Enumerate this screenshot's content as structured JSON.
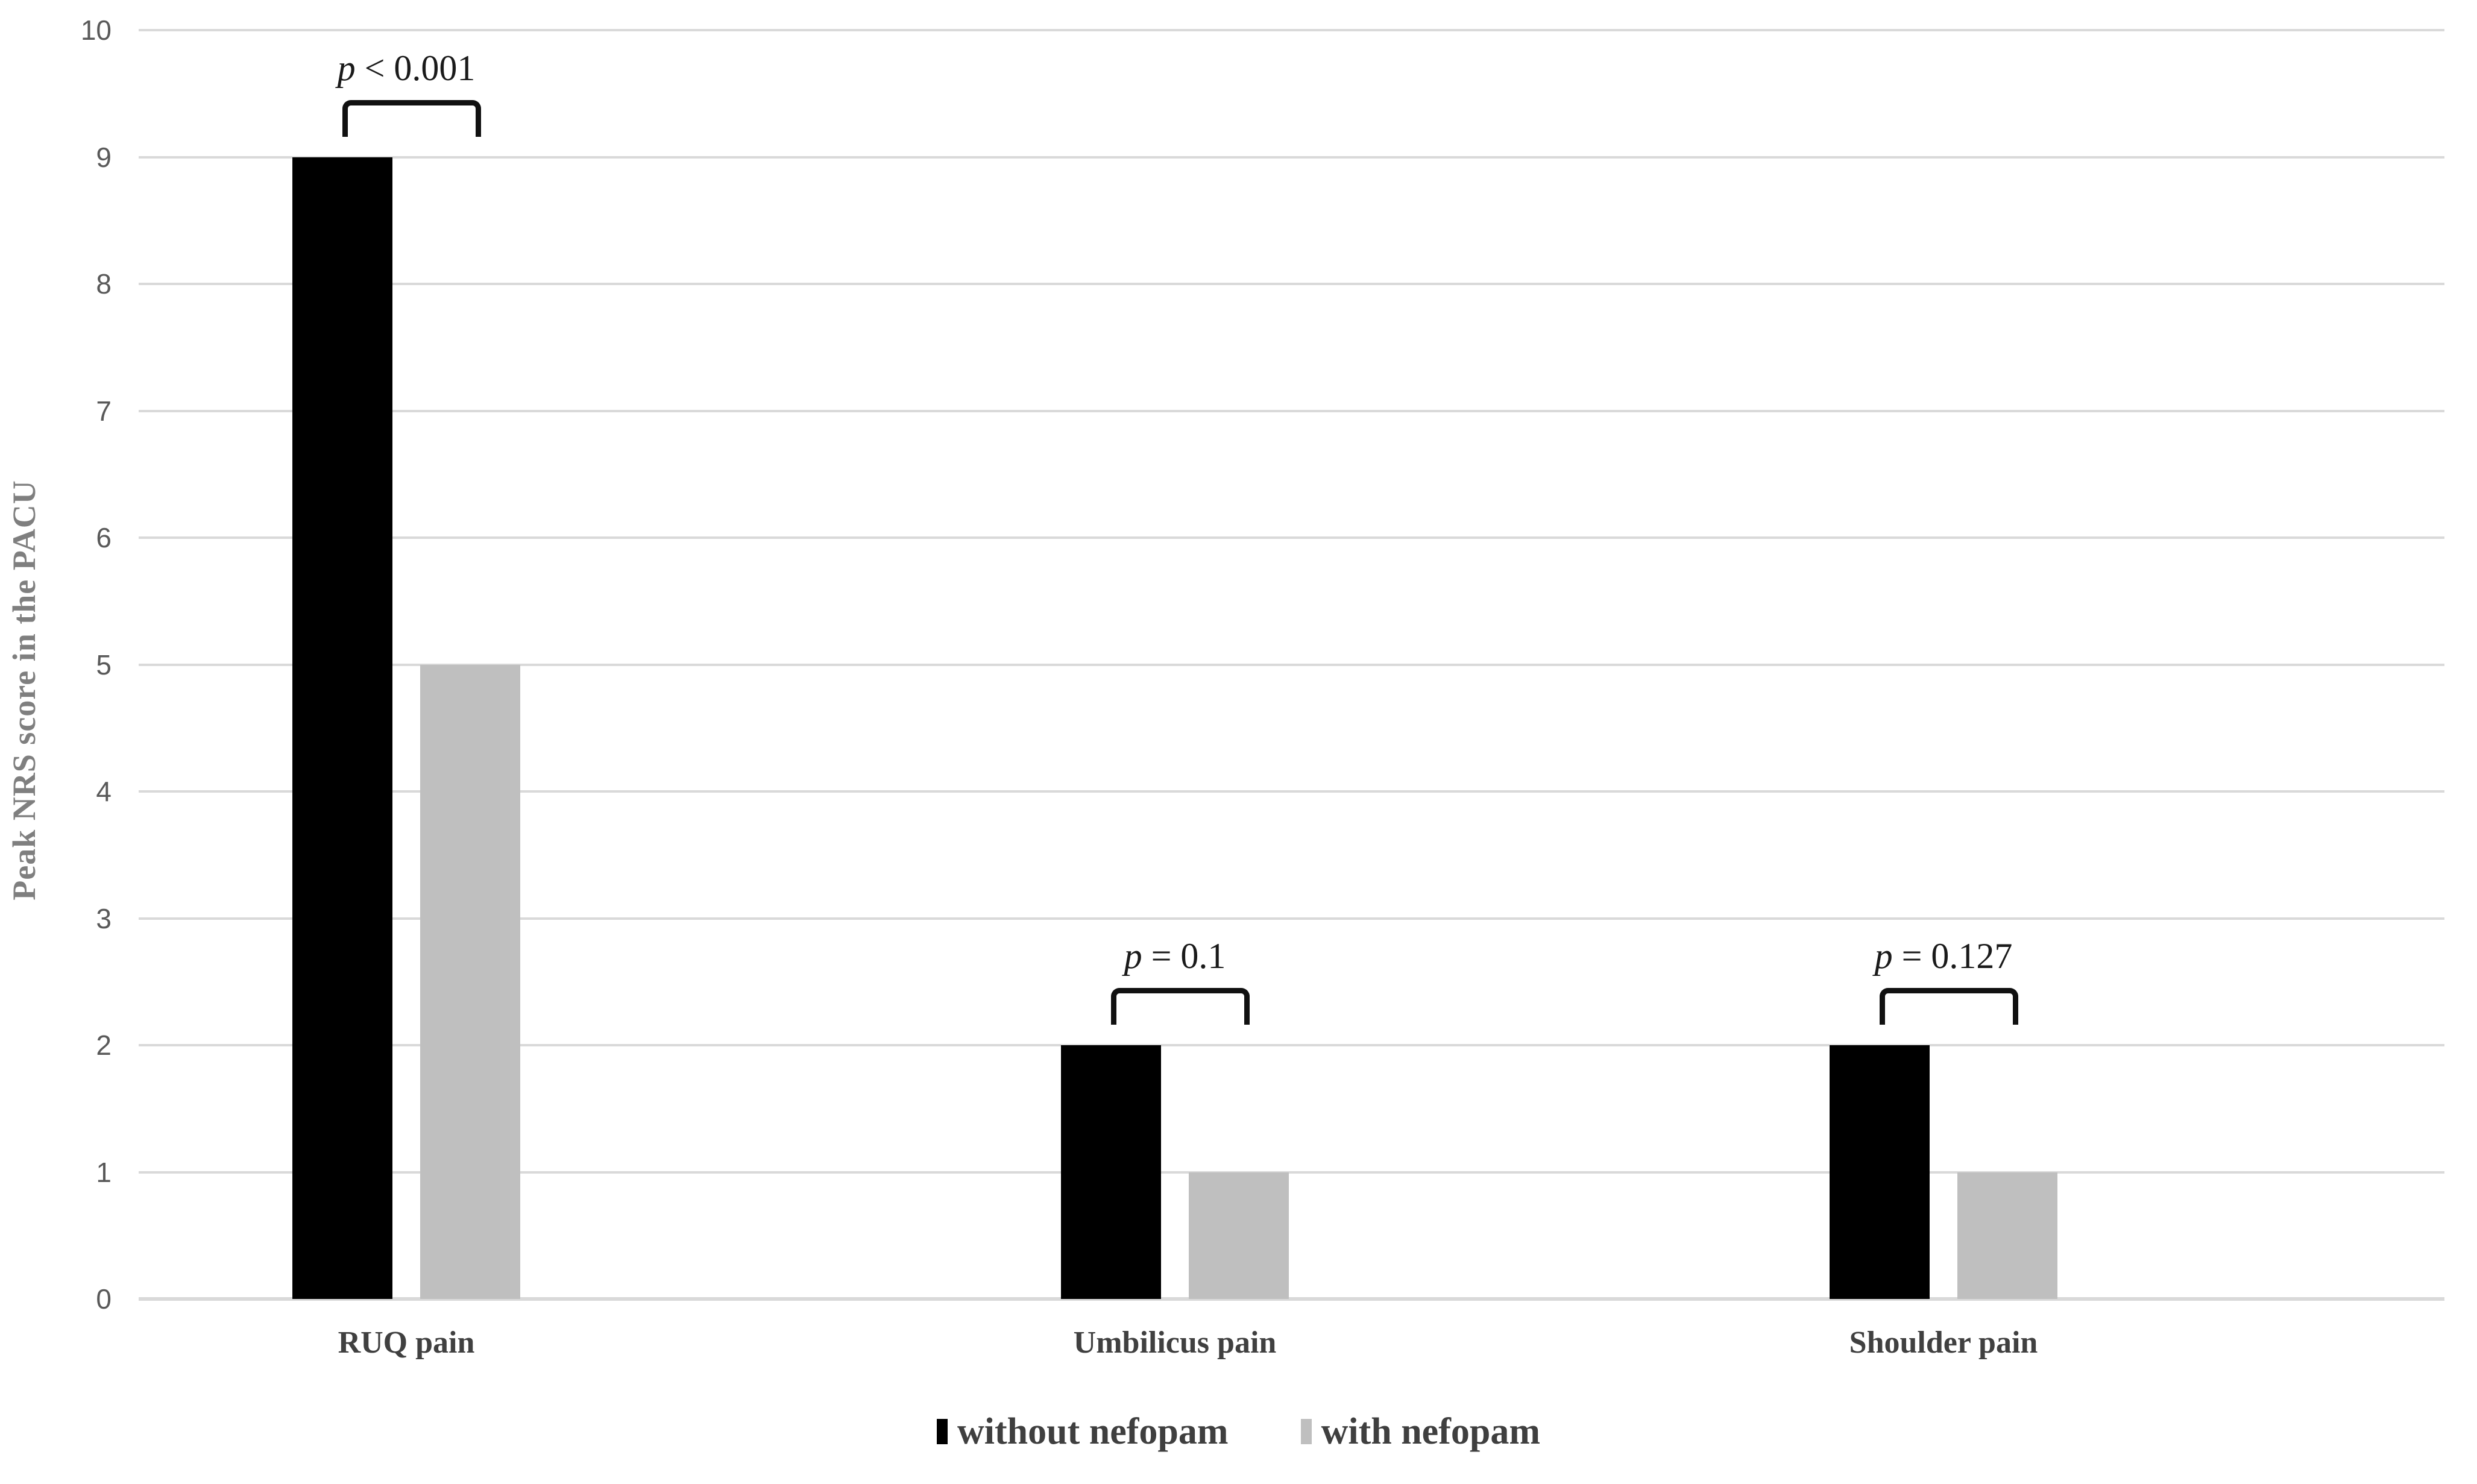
{
  "chart_data": {
    "type": "bar",
    "title": "",
    "categories": [
      "RUQ pain",
      "Umbilicus pain",
      "Shoulder pain"
    ],
    "series": [
      {
        "name": "without nefopam",
        "color": "#000000",
        "values": [
          9,
          2,
          2
        ]
      },
      {
        "name": "with nefopam",
        "color": "#bfbfbf",
        "values": [
          5,
          1,
          1
        ]
      }
    ],
    "significance_annotations": [
      {
        "category": "RUQ pain",
        "label": "p < 0.001"
      },
      {
        "category": "Umbilicus pain",
        "label": "p = 0.1"
      },
      {
        "category": "Shoulder pain",
        "label": "p = 0.127"
      }
    ],
    "xlabel": "",
    "ylabel": "Peak NRS score in the PACU",
    "ylim": [
      0,
      10
    ],
    "yticks": [
      0,
      1,
      2,
      3,
      4,
      5,
      6,
      7,
      8,
      9,
      10
    ],
    "grid": true,
    "legend_position": "bottom"
  },
  "style_colors": {
    "gridline": "#d9d9d9",
    "axis_tick_text": "#595959",
    "category_text": "#404040",
    "y_title_text": "#7f7f7f",
    "legend_text": "#3f3f3f",
    "annotation_text": "#1a1a1a",
    "bracket": "#111111",
    "background": "#ffffff"
  }
}
